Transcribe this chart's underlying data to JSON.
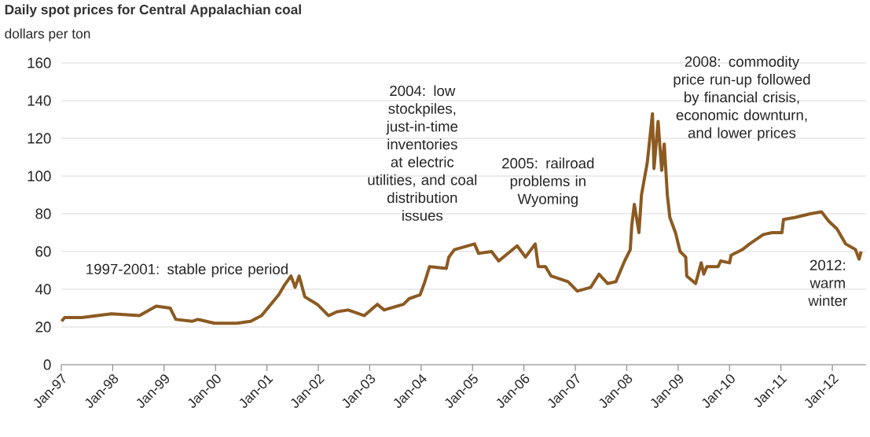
{
  "chart_data": {
    "type": "line",
    "title": "Daily spot prices for Central Appalachian coal",
    "ylabel": "dollars per ton",
    "color": "#8c5a22",
    "grid": "y",
    "xlim": [
      "1997-01-01",
      "2012-08-28"
    ],
    "ylim": [
      0,
      160
    ],
    "yticks": [
      0,
      20,
      40,
      60,
      80,
      100,
      120,
      140,
      160
    ],
    "xticks": [
      {
        "value": "1997-01",
        "label": "Jan-97"
      },
      {
        "value": "1998-01",
        "label": "Jan-98"
      },
      {
        "value": "1999-01",
        "label": "Jan-99"
      },
      {
        "value": "2000-01",
        "label": "Jan-00"
      },
      {
        "value": "2001-01",
        "label": "Jan-01"
      },
      {
        "value": "2002-01",
        "label": "Jan-02"
      },
      {
        "value": "2003-01",
        "label": "Jan-03"
      },
      {
        "value": "2004-01",
        "label": "Jan-04"
      },
      {
        "value": "2005-01",
        "label": "Jan-05"
      },
      {
        "value": "2006-01",
        "label": "Jan-06"
      },
      {
        "value": "2007-01",
        "label": "Jan-07"
      },
      {
        "value": "2008-01",
        "label": "Jan-08"
      },
      {
        "value": "2009-01",
        "label": "Jan-09"
      },
      {
        "value": "2010-01",
        "label": "Jan-10"
      },
      {
        "value": "2011-01",
        "label": "Jan-11"
      },
      {
        "value": "2012-01",
        "label": "Jan-12"
      }
    ],
    "x": [
      "1997-01-03",
      "1997-01-25",
      "1997-05-27",
      "1997-12-24",
      "1998-07-10",
      "1998-11-06",
      "1999-02-13",
      "1999-03-25",
      "1999-07-19",
      "1999-08-28",
      "1999-12-24",
      "2000-06-02",
      "2000-09-08",
      "2000-11-24",
      "2001-03-25",
      "2001-05-04",
      "2001-06-21",
      "2001-07-20",
      "2001-08-18",
      "2001-09-27",
      "2001-12-24",
      "2002-03-15",
      "2002-05-12",
      "2002-07-31",
      "2002-11-24",
      "2003-02-24",
      "2003-04-13",
      "2003-08-29",
      "2003-10-08",
      "2003-12-24",
      "2004-01-23",
      "2004-03-01",
      "2004-06-28",
      "2004-07-16",
      "2004-08-25",
      "2005-01-15",
      "2005-02-13",
      "2005-05-16",
      "2005-07-06",
      "2005-11-14",
      "2006-01-12",
      "2006-03-22",
      "2006-04-13",
      "2006-06-03",
      "2006-07-13",
      "2006-11-10",
      "2007-01-15",
      "2007-04-20",
      "2007-06-18",
      "2007-08-19",
      "2007-10-16",
      "2007-12-17",
      "2008-01-26",
      "2008-02-06",
      "2008-02-24",
      "2008-03-28",
      "2008-04-15",
      "2008-05-26",
      "2008-07-02",
      "2008-07-13",
      "2008-08-11",
      "2008-09-06",
      "2008-09-24",
      "2008-10-16",
      "2008-11-03",
      "2008-12-13",
      "2009-01-15",
      "2009-02-24",
      "2009-03-03",
      "2009-05-05",
      "2009-06-14",
      "2009-07-02",
      "2009-07-24",
      "2009-10-12",
      "2009-10-30",
      "2010-01-01",
      "2010-01-12",
      "2010-04-02",
      "2010-05-23",
      "2010-08-29",
      "2010-10-30",
      "2011-01-08",
      "2011-01-19",
      "2011-04-09",
      "2011-07-28",
      "2011-10-16",
      "2011-12-07",
      "2012-02-03",
      "2012-04-05",
      "2012-06-14",
      "2012-07-09",
      "2012-07-24"
    ],
    "values": [
      23,
      25,
      25,
      27,
      26,
      31,
      30,
      24,
      23,
      24,
      22,
      22,
      23,
      26,
      37,
      42,
      47,
      41,
      47,
      36,
      32,
      26,
      28,
      29,
      26,
      32,
      29,
      32,
      35,
      37,
      43,
      52,
      51,
      57,
      61,
      64,
      59,
      60,
      55,
      63,
      57,
      64,
      52,
      52,
      47,
      44,
      39,
      41,
      48,
      43,
      44,
      55,
      61,
      74,
      85,
      70,
      90,
      107,
      133,
      104,
      129,
      103,
      117,
      90,
      78,
      70,
      60,
      57,
      47,
      43,
      54,
      48,
      52,
      52,
      55,
      54,
      58,
      61,
      64,
      69,
      70,
      70,
      77,
      78,
      80,
      81,
      76,
      72,
      64,
      61,
      56,
      60
    ],
    "annotations": [
      "1997-2001: stable price period",
      "2004: low stockpiles, just-in-time inventories at electric utilities, and coal distribution issues",
      "2005: railroad problems in Wyoming",
      "2008: commodity price run-up followed by financial crisis, economic downturn, and lower prices",
      "2012: warm winter"
    ]
  }
}
